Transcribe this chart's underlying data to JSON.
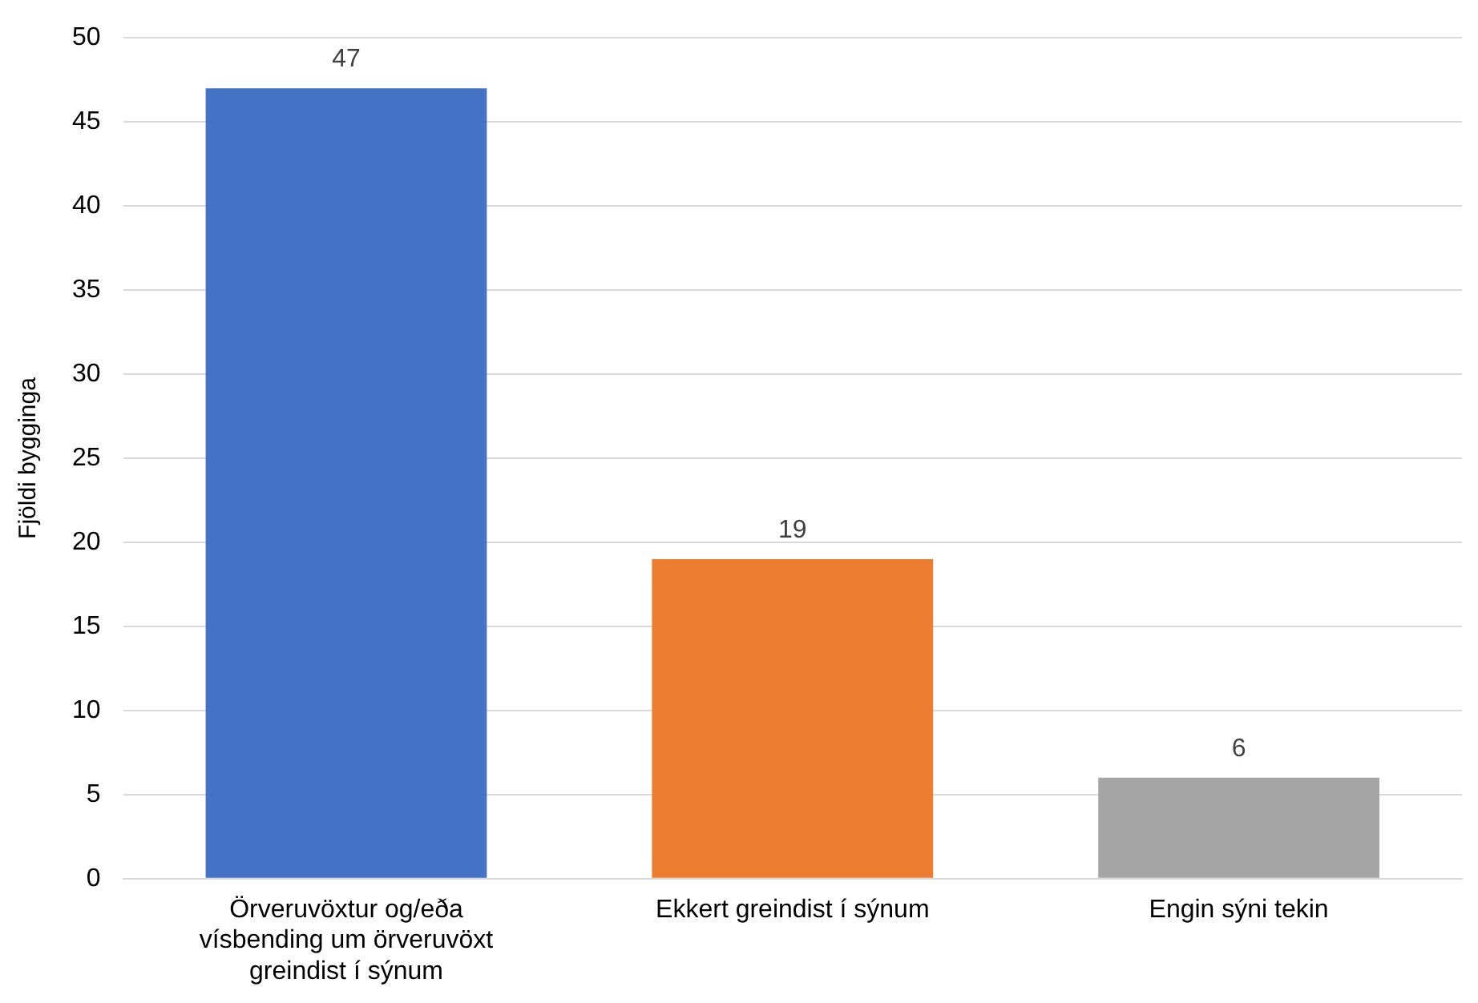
{
  "chart_data": {
    "type": "bar",
    "ylabel": "Fjöldi bygginga",
    "categories": [
      "Örveruvöxtur og/eða vísbending um örveruvöxt greindist í sýnum",
      "Ekkert greindist í sýnum",
      "Engin sýni tekin"
    ],
    "values": [
      47,
      19,
      6
    ],
    "colors": [
      "#4472c4",
      "#ed7d31",
      "#a5a5a5"
    ],
    "ylim": [
      0,
      50
    ],
    "yticks": [
      0,
      5,
      10,
      15,
      20,
      25,
      30,
      35,
      40,
      45,
      50
    ],
    "grid": "y",
    "data_labels": true
  }
}
